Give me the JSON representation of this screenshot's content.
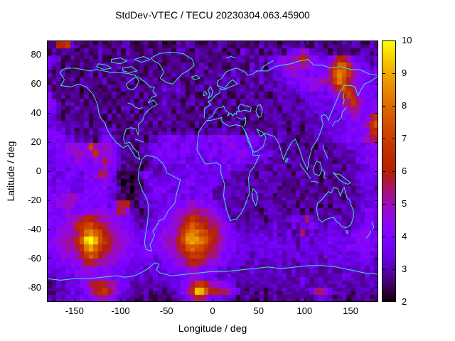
{
  "title": "StdDev-VTEC / TECU 20230304.063.45900",
  "chart_data": {
    "type": "heatmap",
    "title": "StdDev-VTEC / TECU 20230304.063.45900",
    "xlabel": "Longitude / deg",
    "ylabel": "Latitude / deg",
    "xlim": [
      -180,
      180
    ],
    "ylim": [
      -90,
      90
    ],
    "xticks": [
      -150,
      -100,
      -50,
      0,
      50,
      100,
      150
    ],
    "yticks": [
      80,
      60,
      40,
      20,
      0,
      -20,
      -40,
      -60,
      -80
    ],
    "grid_on": false,
    "overlay": "world coastlines",
    "coastline_color": "#40E0D0",
    "colorbar": {
      "min": 2,
      "max": 10,
      "ticks": [
        2,
        3,
        4,
        5,
        6,
        7,
        8,
        9,
        10
      ],
      "palette": "gnuplot default pm3d (rgbformulae 7,5,15: black-violet-red-yellow)"
    },
    "grid": {
      "lon_start": -180,
      "lon_step": 5,
      "cols": 72,
      "lat_start": 90,
      "lat_step": -5,
      "rows_count": 36,
      "encoding": "one char per 5x5 deg cell; value TECU = 2 + 0.5 * digit, digits 0-9 then a-g (a=10 ... g=16)",
      "rows": [
        "218993211212112122111211211121221112122112112121211221121122121121221121",
        "121221112112211212211121112122112211221121321212122133465322212112112212",
        "432112111212112112211211211221112122112212212132334556687543346886433223",
        "322121121121212211212112112112121221221122113221344566576544469bb9643323",
        "21221221121212212112112121121121221212213221322123344555444447bdca754434",
        "12211212211221121221121212212112112221221312213222334444555667acb8654333",
        "2121212122111211211221212322321122121221222122122222333445544579b9754444",
        "42121211212111211212121222212212112121211212212112222223333434568a854443",
        "542122121212121211212121232221221212121221212212212222123333334467975444",
        "432112212121212122121212222122112121212212121122221222222233333446764445",
        "322121122112121212212121212211221212121121212212222122222223333344554579",
        "33221221212121212112121212212211212121221212112112221221222233333444569b",
        "443322121212332121212121212121221212223222122112212212212233233334444589",
        "454433221212443212122122334433443434445443434432323222122121223334344677",
        "444455545a65654321212233344334434443434554434333222122221212122223333445",
        "334455655696554322112234444434434344434444543333322212122122212222233344",
        "334444554455754322121123343334334334334334433323222122212121221222233444",
        "334434444444644312111122233233433343333433322222122212221212212212223344",
        "433344434457743111013432232333343333333322222122212221221221212122233343",
        "334433334444543101011343333433443333332232212222222122122121221221223333",
        "434443334444433211011234443334433443222222221222221221221221122122123332",
        "444556544444432110112334334343434434223222212212212212212212212212222333",
        "445565444444434787212233334444565544432222122122222122121221212222123333",
        "444454445555545775221223344455677665543222212212322212212122222122223443",
        "444455678876655544322233444567898776654322212221222233337322223322233443",
        "44555689ab98765544332334445568aba987765432222322232223233432233232334443",
        "4455667acdca876554433344455679cdcba8865433223232232232272323333323445543",
        "4556678bfgeb98765544344455668adedcb9875443333333333233233233343333344444",
        "44556679dec9876654444444455679bcba98765443333333333333233323333334444443",
        "34455567aba87665544344434455679aa987754433332333333233323332333333334433",
        "334445568876655444333333344456788765544333322322233232233232233333333332",
        "333344455554544433333232334444565444433232223222223223222322232232323232",
        "223333444555554433323223233334455433322322222222222322232222222233222322",
        "122233345788876433222222222334579986655432222222222222232222222322222232",
        "11222333468998643221221221223469feb8877643212121221222222377532222122212",
        "223233343456654322111211111223468764433221121121121122122133321121121211"
      ]
    }
  }
}
